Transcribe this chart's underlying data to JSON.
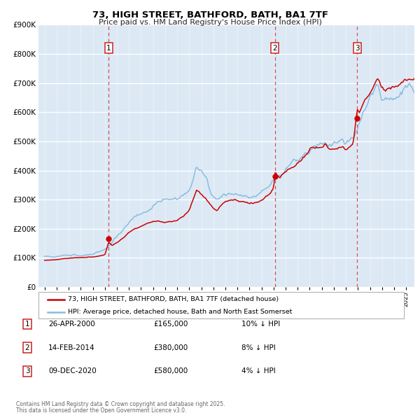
{
  "title": "73, HIGH STREET, BATHFORD, BATH, BA1 7TF",
  "subtitle": "Price paid vs. HM Land Registry's House Price Index (HPI)",
  "background_color": "#ffffff",
  "plot_bg_color": "#dce9f5",
  "legend1": "73, HIGH STREET, BATHFORD, BATH, BA1 7TF (detached house)",
  "legend2": "HPI: Average price, detached house, Bath and North East Somerset",
  "footer_line1": "Contains HM Land Registry data © Crown copyright and database right 2025.",
  "footer_line2": "This data is licensed under the Open Government Licence v3.0.",
  "transactions": [
    {
      "num": 1,
      "date": "26-APR-2000",
      "price": "£165,000",
      "hpi": "10% ↓ HPI",
      "year": 2000.32,
      "value": 165000
    },
    {
      "num": 2,
      "date": "14-FEB-2014",
      "price": "£380,000",
      "hpi": "8% ↓ HPI",
      "year": 2014.12,
      "value": 380000
    },
    {
      "num": 3,
      "date": "09-DEC-2020",
      "price": "£580,000",
      "hpi": "4% ↓ HPI",
      "year": 2020.94,
      "value": 580000
    }
  ],
  "red_color": "#cc0000",
  "blue_color": "#8bbcdf",
  "ylim": [
    0,
    900000
  ],
  "yticks": [
    0,
    100000,
    200000,
    300000,
    400000,
    500000,
    600000,
    700000,
    800000,
    900000
  ],
  "xlim_start": 1994.5,
  "xlim_end": 2025.7
}
